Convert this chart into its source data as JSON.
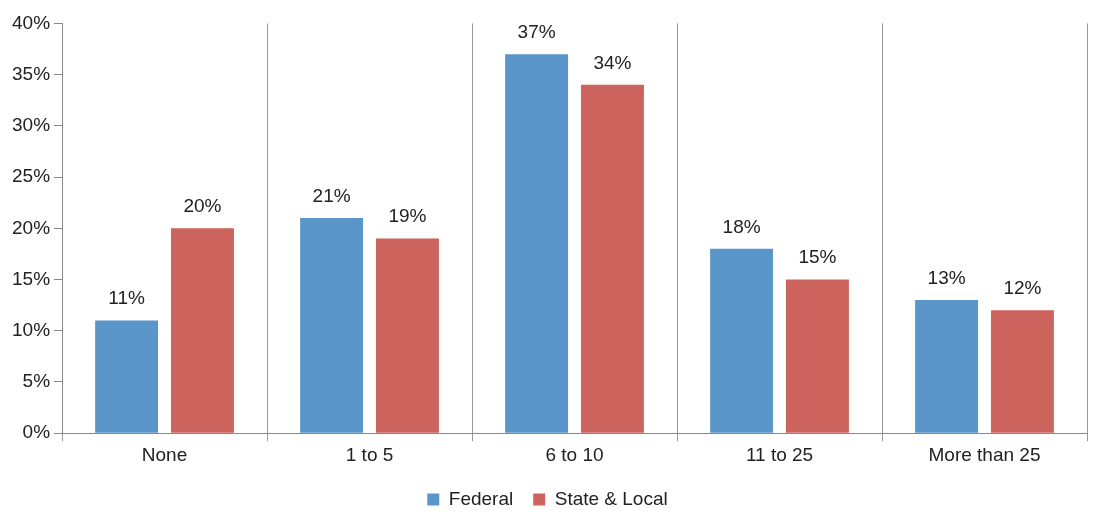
{
  "chart_data": {
    "type": "bar",
    "categories": [
      "None",
      "1 to 5",
      "6 to 10",
      "11 to 25",
      "More than 25"
    ],
    "series": [
      {
        "name": "Federal",
        "color": "#5b96cb",
        "values": [
          11,
          21,
          37,
          18,
          13
        ],
        "value_labels": [
          "11%",
          "21%",
          "37%",
          "18%",
          "13%"
        ]
      },
      {
        "name": "State & Local",
        "color": "#cc635c",
        "values": [
          20,
          19,
          34,
          15,
          12
        ],
        "value_labels": [
          "20%",
          "19%",
          "34%",
          "15%",
          "12%"
        ]
      }
    ],
    "ylim": [
      0,
      40
    ],
    "yticks": [
      {
        "value": 0,
        "label": "0%"
      },
      {
        "value": 5,
        "label": "5%"
      },
      {
        "value": 10,
        "label": "10%"
      },
      {
        "value": 15,
        "label": "15%"
      },
      {
        "value": 20,
        "label": "20%"
      },
      {
        "value": 25,
        "label": "25%"
      },
      {
        "value": 30,
        "label": "30%"
      },
      {
        "value": 35,
        "label": "35%"
      },
      {
        "value": 40,
        "label": "40%"
      }
    ],
    "grid": "x",
    "legend": "bottom"
  }
}
